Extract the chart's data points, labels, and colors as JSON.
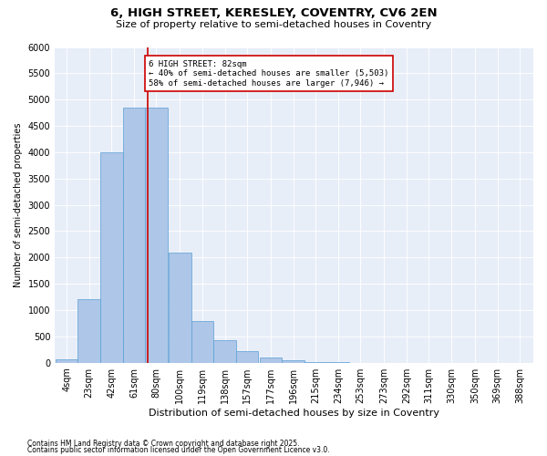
{
  "title1": "6, HIGH STREET, KERESLEY, COVENTRY, CV6 2EN",
  "title2": "Size of property relative to semi-detached houses in Coventry",
  "xlabel": "Distribution of semi-detached houses by size in Coventry",
  "ylabel": "Number of semi-detached properties",
  "footer1": "Contains HM Land Registry data © Crown copyright and database right 2025.",
  "footer2": "Contains public sector information licensed under the Open Government Licence v3.0.",
  "bin_labels": [
    "4sqm",
    "23sqm",
    "42sqm",
    "61sqm",
    "80sqm",
    "100sqm",
    "119sqm",
    "138sqm",
    "157sqm",
    "177sqm",
    "196sqm",
    "215sqm",
    "234sqm",
    "253sqm",
    "273sqm",
    "292sqm",
    "311sqm",
    "330sqm",
    "350sqm",
    "369sqm",
    "388sqm"
  ],
  "bar_values": [
    70,
    1200,
    4000,
    4850,
    4850,
    2100,
    800,
    420,
    220,
    100,
    40,
    10,
    5,
    2,
    1,
    0,
    0,
    0,
    0,
    0,
    0
  ],
  "bin_starts": [
    4,
    23,
    42,
    61,
    80,
    100,
    119,
    138,
    157,
    177,
    196,
    215,
    234,
    253,
    273,
    292,
    311,
    330,
    350,
    369,
    388
  ],
  "bin_width": 19,
  "property_size": 82,
  "property_label": "6 HIGH STREET: 82sqm",
  "pct_smaller": 40,
  "pct_larger": 58,
  "n_smaller": 5503,
  "n_larger": 7946,
  "bar_color": "#aec6e8",
  "bar_edge_color": "#5a9fd4",
  "vline_color": "#cc0000",
  "annotation_box_color": "#cc0000",
  "background_color": "#e8eef8",
  "ylim": [
    0,
    6000
  ],
  "yticks": [
    0,
    500,
    1000,
    1500,
    2000,
    2500,
    3000,
    3500,
    4000,
    4500,
    5000,
    5500,
    6000
  ],
  "vline_x": 82,
  "title1_fontsize": 9.5,
  "title2_fontsize": 8,
  "xlabel_fontsize": 8,
  "ylabel_fontsize": 7,
  "tick_fontsize": 7,
  "footer_fontsize": 5.5,
  "ann_fontsize": 6.5
}
